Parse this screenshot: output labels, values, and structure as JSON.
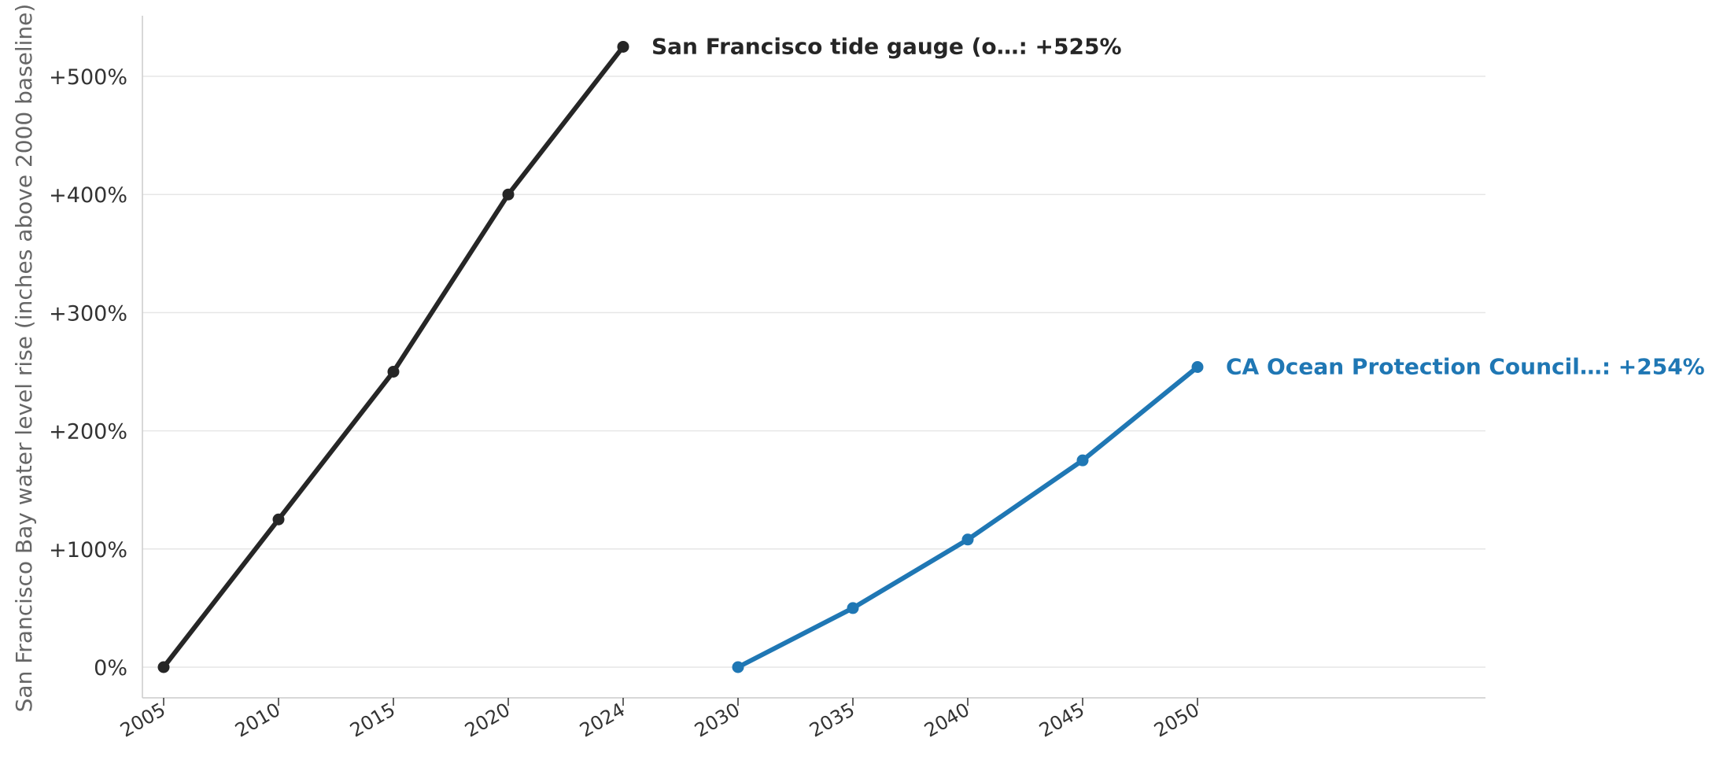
{
  "chart_data": {
    "type": "line",
    "ylabel": "San Francisco Bay water level rise (inches above 2000 baseline)",
    "ylim": [
      -25,
      550
    ],
    "y_ticks": [
      0,
      100,
      200,
      300,
      400,
      500
    ],
    "y_tick_labels": [
      "0%",
      "+100%",
      "+200%",
      "+300%",
      "+400%",
      "+500%"
    ],
    "x_categories": [
      "2005",
      "2010",
      "2015",
      "2020",
      "2024",
      "2030",
      "2035",
      "2040",
      "2045",
      "2050"
    ],
    "grid": "horizontal",
    "series": [
      {
        "name": "San Francisco tide gauge (o…",
        "color": "#262626",
        "x": [
          "2005",
          "2010",
          "2015",
          "2020",
          "2024"
        ],
        "values": [
          0,
          125,
          250,
          400,
          525
        ],
        "end_label": "San Francisco tide gauge (o…: +525%"
      },
      {
        "name": "CA Ocean Protection Council…",
        "color": "#1f77b4",
        "x": [
          "2030",
          "2035",
          "2040",
          "2045",
          "2050"
        ],
        "values": [
          0,
          50,
          108,
          175,
          254
        ],
        "end_label": "CA Ocean Protection Council…: +254%"
      }
    ]
  }
}
